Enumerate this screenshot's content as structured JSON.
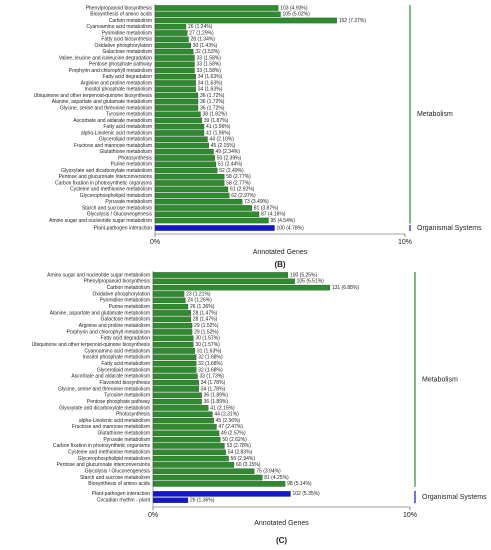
{
  "chart_data": [
    {
      "type": "bar",
      "orientation": "horizontal",
      "panel_label": "(B)",
      "xlabel": "Annotated Genes",
      "xlim": [
        0,
        10
      ],
      "xticks": [
        {
          "value": 0,
          "label": "0%"
        },
        {
          "value": 10,
          "label": "10%"
        }
      ],
      "groups": [
        {
          "name": "Metabolism",
          "color": "#2e8b2e",
          "categories": [
            "Phenylpropanoid biosynthesis",
            "Biosynthesis of amino acids",
            "Carbon metabolism",
            "Cyanoamino acid metabolism",
            "Pyrimidine metabolism",
            "Fatty acid biosynthesis",
            "Oxidative phosphorylation",
            "Galactose metabolism",
            "Valine, leucine and isoleucine degradation",
            "Pentose phosphate pathway",
            "Porphyrin and chlorophyll metabolism",
            "Fatty acid degradation",
            "Arginine and proline metabolism",
            "Inositol phosphate metabolism",
            "Ubiquinone and other terpenoid-quinone biosynthesis",
            "Alanine, aspartate and glutamate metabolism",
            "Glycine, serine and threonine metabolism",
            "Tyrosine metabolism",
            "Ascorbate and aldarate metabolism",
            "Fatty acid metabolism",
            "alpha-Linolenic acid metabolism",
            "Glycerolipid metabolism",
            "Fructose and mannose metabolism",
            "Glutathione metabolism",
            "Photosynthesis",
            "Purine metabolism",
            "Glyoxylate and dicarboxylate metabolism",
            "Pentose and glucuronate interconversions",
            "Carbon fixation in photosynthetic organisms",
            "Cysteine and methionine metabolism",
            "Glycerophospholipid metabolism",
            "Pyruvate metabolism",
            "Starch and sucrose metabolism",
            "Glycolysis / Gluconeogenesis",
            "Amino sugar and nucleotide sugar metabolism"
          ],
          "values": [
            4.93,
            5.02,
            7.27,
            1.24,
            1.29,
            1.34,
            1.43,
            1.53,
            1.58,
            1.58,
            1.58,
            1.63,
            1.63,
            1.63,
            1.72,
            1.72,
            1.72,
            1.82,
            1.87,
            1.96,
            1.96,
            2.1,
            2.15,
            2.34,
            2.39,
            2.44,
            2.49,
            2.77,
            2.77,
            2.92,
            2.97,
            3.49,
            3.87,
            4.16,
            4.54
          ],
          "value_labels": [
            "103 (4.93%)",
            "105 (5.02%)",
            "152 (7.27%)",
            "26 (1.24%)",
            "27 (1.29%)",
            "28 (1.34%)",
            "30 (1.43%)",
            "32 (1.53%)",
            "33 (1.58%)",
            "33 (1.58%)",
            "33 (1.58%)",
            "34 (1.63%)",
            "34 (1.63%)",
            "34 (1.63%)",
            "36 (1.72%)",
            "36 (1.72%)",
            "36 (1.72%)",
            "38 (1.82%)",
            "39 (1.87%)",
            "41 (1.96%)",
            "41 (1.96%)",
            "44 (2.10%)",
            "45 (2.15%)",
            "49 (2.34%)",
            "50 (2.39%)",
            "51 (2.44%)",
            "52 (2.49%)",
            "58 (2.77%)",
            "58 (2.77%)",
            "61 (2.92%)",
            "62 (2.97%)",
            "73 (3.49%)",
            "81 (3.87%)",
            "87 (4.16%)",
            "95 (4.54%)"
          ]
        },
        {
          "name": "Organismal Systems",
          "color": "#1414d2",
          "categories": [
            "Plant-pathogen interaction"
          ],
          "values": [
            4.78
          ],
          "value_labels": [
            "100 (4.78%)"
          ]
        }
      ]
    },
    {
      "type": "bar",
      "orientation": "horizontal",
      "panel_label": "(C)",
      "xlabel": "Annotated Genes",
      "xlim": [
        0,
        10
      ],
      "xticks": [
        {
          "value": 0,
          "label": "0%"
        },
        {
          "value": 10,
          "label": "10%"
        }
      ],
      "groups": [
        {
          "name": "Metabolism",
          "color": "#2e8b2e",
          "categories": [
            "Amino sugar and nucleotide sugar metabolism",
            "Phenylpropanoid biosynthesis",
            "Carbon metabolism",
            "Oxidative phosphorylation",
            "Pyrimidine metabolism",
            "Purine metabolism",
            "Alanine, aspartate and glutamate metabolism",
            "Galactose metabolism",
            "Arginine and proline metabolism",
            "Porphyrin and chlorophyll metabolism",
            "Fatty acid degradation",
            "Ubiquinone and other terpenoid-quinone biosynthesis",
            "Cyanoamino acid metabolism",
            "Inositol phosphate metabolism",
            "Fatty acid metabolism",
            "Glycerolipid metabolism",
            "Ascorbate and aldarate metabolism",
            "Flavonoid biosynthesis",
            "Glycine, serine and threonine metabolism",
            "Tyrosine metabolism",
            "Pentose phosphate pathway",
            "Glyoxylate and dicarboxylate metabolism",
            "Photosynthesis",
            "alpha-Linolenic acid metabolism",
            "Fructose and mannose metabolism",
            "Glutathione metabolism",
            "Pyruvate metabolism",
            "Carbon fixation in photosynthetic organisms",
            "Cysteine and methionine metabolism",
            "Glycerophospholipid metabolism",
            "Pentose and glucuronate interconversions",
            "Glycolysis / Gluconeogenesis",
            "Starch and sucrose metabolism",
            "Biosynthesis of amino acids"
          ],
          "values": [
            5.25,
            5.51,
            6.88,
            1.21,
            1.26,
            1.36,
            1.47,
            1.47,
            1.52,
            1.52,
            1.57,
            1.57,
            1.63,
            1.68,
            1.68,
            1.68,
            1.73,
            1.78,
            1.78,
            1.89,
            1.89,
            2.15,
            2.31,
            2.36,
            2.47,
            2.57,
            2.62,
            2.78,
            2.83,
            2.94,
            3.15,
            3.94,
            4.25,
            5.14
          ],
          "value_labels": [
            "100 (5.25%)",
            "105 (5.51%)",
            "131 (6.88%)",
            "23 (1.21%)",
            "24 (1.26%)",
            "26 (1.36%)",
            "28 (1.47%)",
            "28 (1.47%)",
            "29 (1.52%)",
            "29 (1.52%)",
            "30 (1.57%)",
            "30 (1.57%)",
            "31 (1.63%)",
            "32 (1.68%)",
            "32 (1.68%)",
            "32 (1.68%)",
            "33 (1.73%)",
            "34 (1.78%)",
            "34 (1.78%)",
            "36 (1.89%)",
            "36 (1.89%)",
            "41 (2.15%)",
            "44 (2.31%)",
            "45 (2.36%)",
            "47 (2.47%)",
            "49 (2.57%)",
            "50 (2.62%)",
            "53 (2.78%)",
            "54 (2.83%)",
            "56 (2.94%)",
            "60 (3.15%)",
            "75 (3.94%)",
            "81 (4.25%)",
            "98 (5.14%)"
          ]
        },
        {
          "name": "Organismal Systems",
          "color": "#1414d2",
          "categories": [
            "Plant-pathogen interaction",
            "Circadian rhythm - plant"
          ],
          "values": [
            5.35,
            1.36
          ],
          "value_labels": [
            "102 (5.35%)",
            "26 (1.36%)"
          ]
        }
      ]
    }
  ]
}
